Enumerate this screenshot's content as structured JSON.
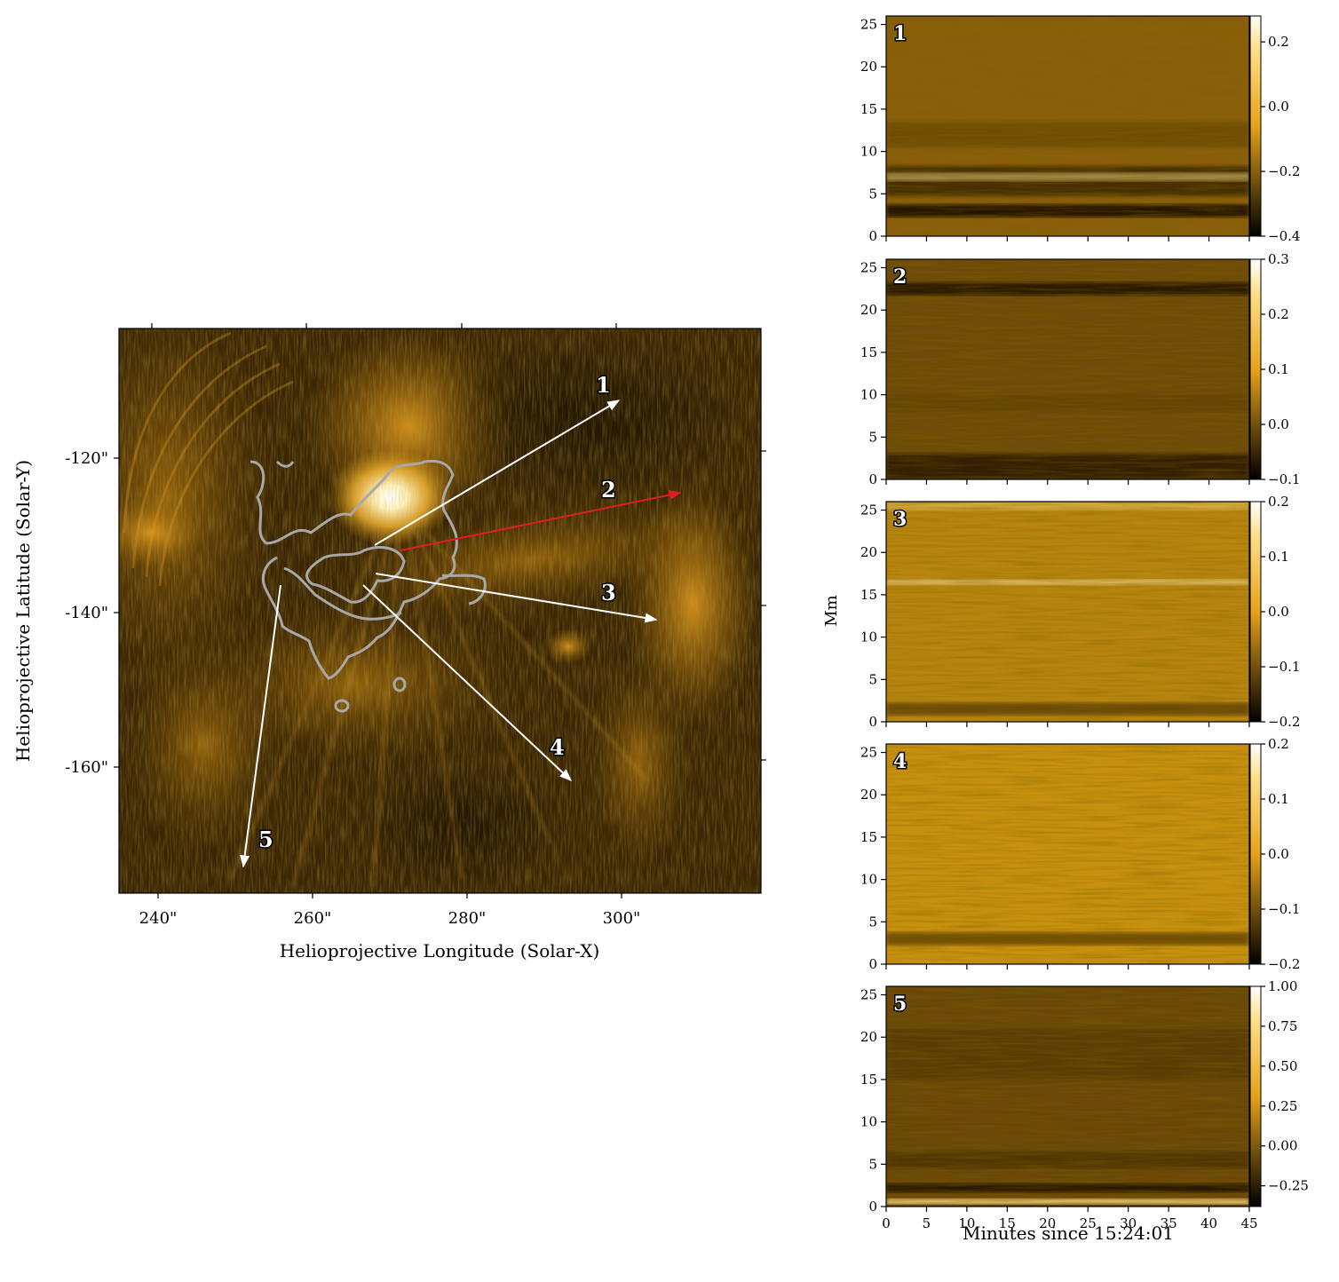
{
  "colors": {
    "map_dark": "#2a1a02",
    "map_bright": "#ffd45a",
    "contour": "#a8a8a8",
    "arrow_white": "#ffffff",
    "arrow_red": "#e02020",
    "cbar_low": "#000000",
    "cbar_mid": "#e6a21a",
    "cbar_high": "#ffffff"
  },
  "map": {
    "xlabel": "Helioprojective Longitude (Solar-X)",
    "ylabel": "Helioprojective Latitude (Solar-Y)",
    "x_ticks": [
      "240\"",
      "260\"",
      "280\"",
      "300\""
    ],
    "y_ticks": [
      "-120\"",
      "-140\"",
      "-160\""
    ],
    "slits": [
      {
        "label": "1",
        "color": "white"
      },
      {
        "label": "2",
        "color": "red"
      },
      {
        "label": "3",
        "color": "white"
      },
      {
        "label": "4",
        "color": "white"
      },
      {
        "label": "5",
        "color": "white"
      }
    ]
  },
  "chart_data": [
    {
      "type": "heatmap",
      "title": "",
      "xlabel": "Helioprojective Longitude (Solar-X)",
      "ylabel": "Helioprojective Latitude (Solar-Y)",
      "xlim": [
        235,
        318
      ],
      "ylim": [
        -177,
        -103
      ],
      "x_ticks": [
        240,
        260,
        280,
        300
      ],
      "y_ticks": [
        -120,
        -140,
        -160
      ],
      "annotations": [
        {
          "label": "1",
          "from": [
            268,
            -131.5
          ],
          "to": [
            300,
            -113
          ]
        },
        {
          "label": "2",
          "from": [
            272,
            -132
          ],
          "to": [
            308,
            -124.5
          ]
        },
        {
          "label": "3",
          "from": [
            268,
            -135
          ],
          "to": [
            305,
            -141
          ]
        },
        {
          "label": "4",
          "from": [
            266,
            -137
          ],
          "to": [
            293.5,
            -162
          ]
        },
        {
          "label": "5",
          "from": [
            255.5,
            -137
          ],
          "to": [
            251,
            -174
          ]
        }
      ]
    },
    {
      "type": "heatmap",
      "panel": "1",
      "xlabel": "Minutes since 15:24:01",
      "ylabel": "Mm",
      "xlim": [
        0,
        45
      ],
      "ylim": [
        0,
        26
      ],
      "x_ticks": [
        0,
        5,
        10,
        15,
        20,
        25,
        30,
        35,
        40,
        45
      ],
      "y_ticks": [
        0,
        5,
        10,
        15,
        20,
        25
      ],
      "colorbar_range": [
        -0.4,
        0.28
      ],
      "colorbar_ticks": [
        "0.2",
        "0.0",
        "−0.2",
        "−0.4"
      ]
    },
    {
      "type": "heatmap",
      "panel": "2",
      "xlabel": "Minutes since 15:24:01",
      "ylabel": "Mm",
      "xlim": [
        0,
        45
      ],
      "ylim": [
        0,
        26
      ],
      "x_ticks": [
        0,
        5,
        10,
        15,
        20,
        25,
        30,
        35,
        40,
        45
      ],
      "y_ticks": [
        0,
        5,
        10,
        15,
        20,
        25
      ],
      "colorbar_range": [
        -0.1,
        0.3
      ],
      "colorbar_ticks": [
        "0.3",
        "0.2",
        "0.1",
        "0.0",
        "−0.1"
      ]
    },
    {
      "type": "heatmap",
      "panel": "3",
      "xlabel": "Minutes since 15:24:01",
      "ylabel": "Mm",
      "xlim": [
        0,
        45
      ],
      "ylim": [
        0,
        26
      ],
      "x_ticks": [
        0,
        5,
        10,
        15,
        20,
        25,
        30,
        35,
        40,
        45
      ],
      "y_ticks": [
        0,
        5,
        10,
        15,
        20,
        25
      ],
      "colorbar_range": [
        -0.2,
        0.2
      ],
      "colorbar_ticks": [
        "0.2",
        "0.1",
        "0.0",
        "−0.1",
        "−0.2"
      ]
    },
    {
      "type": "heatmap",
      "panel": "4",
      "xlabel": "Minutes since 15:24:01",
      "ylabel": "Mm",
      "xlim": [
        0,
        45
      ],
      "ylim": [
        0,
        26
      ],
      "x_ticks": [
        0,
        5,
        10,
        15,
        20,
        25,
        30,
        35,
        40,
        45
      ],
      "y_ticks": [
        0,
        5,
        10,
        15,
        20,
        25
      ],
      "colorbar_range": [
        -0.2,
        0.2
      ],
      "colorbar_ticks": [
        "0.2",
        "0.1",
        "0.0",
        "−0.1",
        "−0.2"
      ]
    },
    {
      "type": "heatmap",
      "panel": "5",
      "xlabel": "Minutes since 15:24:01",
      "ylabel": "Mm",
      "xlim": [
        0,
        45
      ],
      "ylim": [
        0,
        26
      ],
      "x_ticks": [
        0,
        5,
        10,
        15,
        20,
        25,
        30,
        35,
        40,
        45
      ],
      "y_ticks": [
        0,
        5,
        10,
        15,
        20,
        25
      ],
      "colorbar_range": [
        -0.38,
        1.0
      ],
      "colorbar_ticks": [
        "1.00",
        "0.75",
        "0.50",
        "0.25",
        "0.00",
        "−0.25"
      ]
    }
  ],
  "td": {
    "ylabel": "Mm",
    "xlabel": "Minutes since 15:24:01",
    "x_ticks": [
      "0",
      "5",
      "10",
      "15",
      "20",
      "25",
      "30",
      "35",
      "40",
      "45"
    ],
    "y_ticks": [
      "0",
      "5",
      "10",
      "15",
      "20",
      "25"
    ],
    "panels": [
      {
        "label": "1",
        "cbar_ticks": [
          "0.2",
          "0.0",
          "−0.2",
          "−0.4"
        ]
      },
      {
        "label": "2",
        "cbar_ticks": [
          "0.3",
          "0.2",
          "0.1",
          "0.0",
          "−0.1"
        ]
      },
      {
        "label": "3",
        "cbar_ticks": [
          "0.2",
          "0.1",
          "0.0",
          "−0.1",
          "−0.2"
        ]
      },
      {
        "label": "4",
        "cbar_ticks": [
          "0.2",
          "0.1",
          "0.0",
          "−0.1",
          "−0.2"
        ]
      },
      {
        "label": "5",
        "cbar_ticks": [
          "1.00",
          "0.75",
          "0.50",
          "0.25",
          "0.00",
          "−0.25"
        ]
      }
    ]
  }
}
